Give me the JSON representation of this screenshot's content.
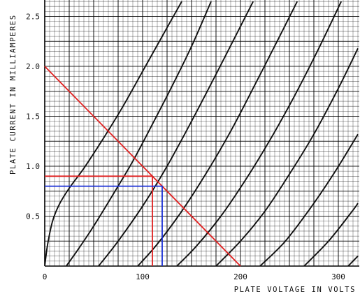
{
  "chart_data": {
    "type": "line",
    "xlabel": "PLATE VOLTAGE IN VOLTS",
    "ylabel": "PLATE CURRENT IN MILLIAMPERES",
    "xlim": [
      0,
      320
    ],
    "ylim": [
      0,
      2.6
    ],
    "x_ticks": [
      {
        "value": 0,
        "label": "0"
      },
      {
        "value": 100,
        "label": "100"
      },
      {
        "value": 200,
        "label": "200"
      },
      {
        "value": 300,
        "label": "300"
      }
    ],
    "y_ticks": [
      {
        "value": 0.5,
        "label": "0.5"
      },
      {
        "value": 1.0,
        "label": "1.0"
      },
      {
        "value": 1.5,
        "label": "1.5"
      },
      {
        "value": 2.0,
        "label": "2.0"
      },
      {
        "value": 2.5,
        "label": "2.5"
      }
    ],
    "grid": true,
    "characteristic_curves": [
      {
        "values": [
          [
            0,
            0
          ],
          [
            3,
            0.22
          ],
          [
            8,
            0.45
          ],
          [
            15,
            0.62
          ],
          [
            25,
            0.78
          ],
          [
            40,
            0.98
          ],
          [
            60,
            1.28
          ],
          [
            80,
            1.6
          ],
          [
            100,
            1.95
          ],
          [
            120,
            2.3
          ],
          [
            140,
            2.65
          ]
        ]
      },
      {
        "values": [
          [
            22,
            0
          ],
          [
            35,
            0.18
          ],
          [
            50,
            0.4
          ],
          [
            70,
            0.72
          ],
          [
            90,
            1.05
          ],
          [
            110,
            1.42
          ],
          [
            130,
            1.8
          ],
          [
            150,
            2.2
          ],
          [
            170,
            2.65
          ]
        ]
      },
      {
        "values": [
          [
            55,
            0
          ],
          [
            75,
            0.25
          ],
          [
            100,
            0.6
          ],
          [
            125,
            1.0
          ],
          [
            150,
            1.45
          ],
          [
            175,
            1.92
          ],
          [
            200,
            2.4
          ],
          [
            213,
            2.65
          ]
        ]
      },
      {
        "values": [
          [
            95,
            0
          ],
          [
            115,
            0.22
          ],
          [
            140,
            0.55
          ],
          [
            165,
            0.93
          ],
          [
            190,
            1.35
          ],
          [
            215,
            1.82
          ],
          [
            240,
            2.3
          ],
          [
            258,
            2.65
          ]
        ]
      },
      {
        "values": [
          [
            135,
            0
          ],
          [
            155,
            0.2
          ],
          [
            180,
            0.5
          ],
          [
            205,
            0.86
          ],
          [
            230,
            1.26
          ],
          [
            255,
            1.7
          ],
          [
            280,
            2.18
          ],
          [
            303,
            2.65
          ]
        ]
      },
      {
        "values": [
          [
            175,
            0
          ],
          [
            200,
            0.25
          ],
          [
            225,
            0.55
          ],
          [
            250,
            0.92
          ],
          [
            275,
            1.32
          ],
          [
            300,
            1.78
          ],
          [
            320,
            2.18
          ]
        ]
      },
      {
        "values": [
          [
            220,
            0
          ],
          [
            245,
            0.24
          ],
          [
            270,
            0.56
          ],
          [
            295,
            0.92
          ],
          [
            320,
            1.32
          ]
        ]
      },
      {
        "values": [
          [
            265,
            0
          ],
          [
            290,
            0.25
          ],
          [
            315,
            0.56
          ],
          [
            320,
            0.63
          ]
        ]
      },
      {
        "values": [
          [
            310,
            0
          ],
          [
            320,
            0.1
          ]
        ]
      }
    ],
    "load_line": {
      "color": "#e02020",
      "values": [
        [
          0,
          2.0
        ],
        [
          200,
          0
        ]
      ]
    },
    "operating_points": [
      {
        "color": "#e02020",
        "x": 110,
        "y": 0.9
      },
      {
        "color": "#1a2fd6",
        "x": 120,
        "y": 0.8
      }
    ]
  }
}
